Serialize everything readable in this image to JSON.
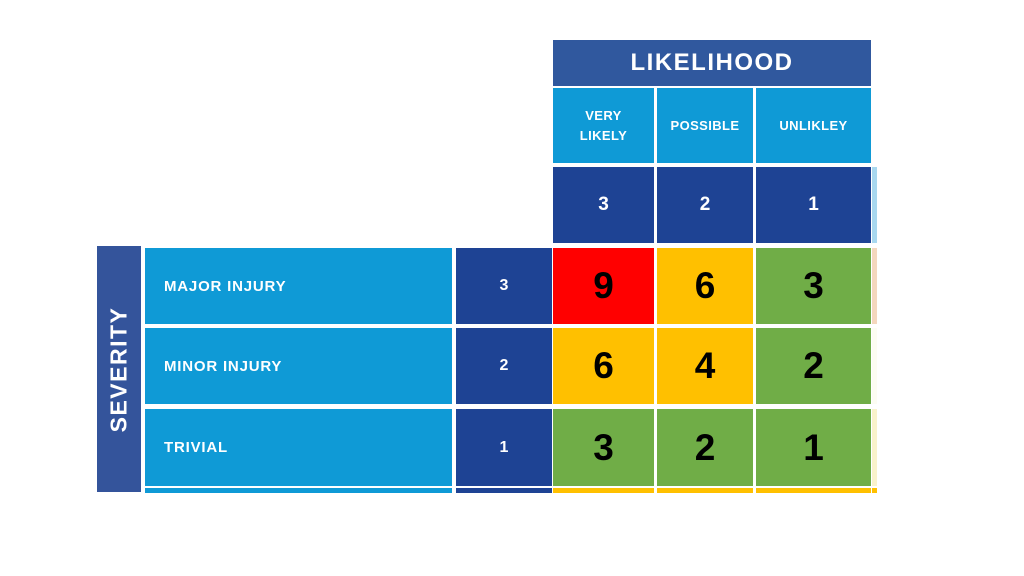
{
  "chart_data": {
    "type": "heatmap",
    "title": "",
    "x_axis": {
      "title": "LIKELIHOOD",
      "categories": [
        "VERY LIKELY",
        "POSSIBLE",
        "UNLIKLEY"
      ],
      "scores": [
        3,
        2,
        1
      ]
    },
    "y_axis": {
      "title": "SEVERITY",
      "categories": [
        "MAJOR INJURY",
        "MINOR INJURY",
        "TRIVIAL"
      ],
      "scores": [
        3,
        2,
        1
      ]
    },
    "values": [
      [
        9,
        6,
        3
      ],
      [
        6,
        4,
        2
      ],
      [
        3,
        2,
        1
      ]
    ],
    "cell_colors": [
      [
        "#FF0000",
        "#FFC000",
        "#70AD47"
      ],
      [
        "#FFC000",
        "#FFC000",
        "#70AD47"
      ],
      [
        "#70AD47",
        "#70AD47",
        "#70AD47"
      ]
    ],
    "legend": "none",
    "grid": "white separators"
  },
  "colors": {
    "header_blue": "#30589E",
    "severity_bar_blue": "#34549B",
    "score_navy": "#1E4394",
    "label_light_blue": "#0F9AD6",
    "risk_high": "#FF0000",
    "risk_medium": "#FFC000",
    "risk_low": "#70AD47",
    "background": "#FFFFFF",
    "text_light": "#FFFFFF",
    "text_dark": "#000000"
  },
  "artifacts": {
    "bottom_cutoff_row": {
      "label_color": "#0F9AD6",
      "score_color": "#1E4394",
      "matrix_color": "#FFC000"
    },
    "right_edge_slivers": [
      {
        "row": "scores",
        "color": "#A9D8EF"
      },
      {
        "row": "major-injury",
        "color": "#F4D7BE"
      },
      {
        "row": "minor-injury",
        "color": "#FCFCF2"
      },
      {
        "row": "trivial",
        "color": "#F9F2CB"
      },
      {
        "row": "bottom",
        "color": "#FFC000"
      }
    ]
  }
}
